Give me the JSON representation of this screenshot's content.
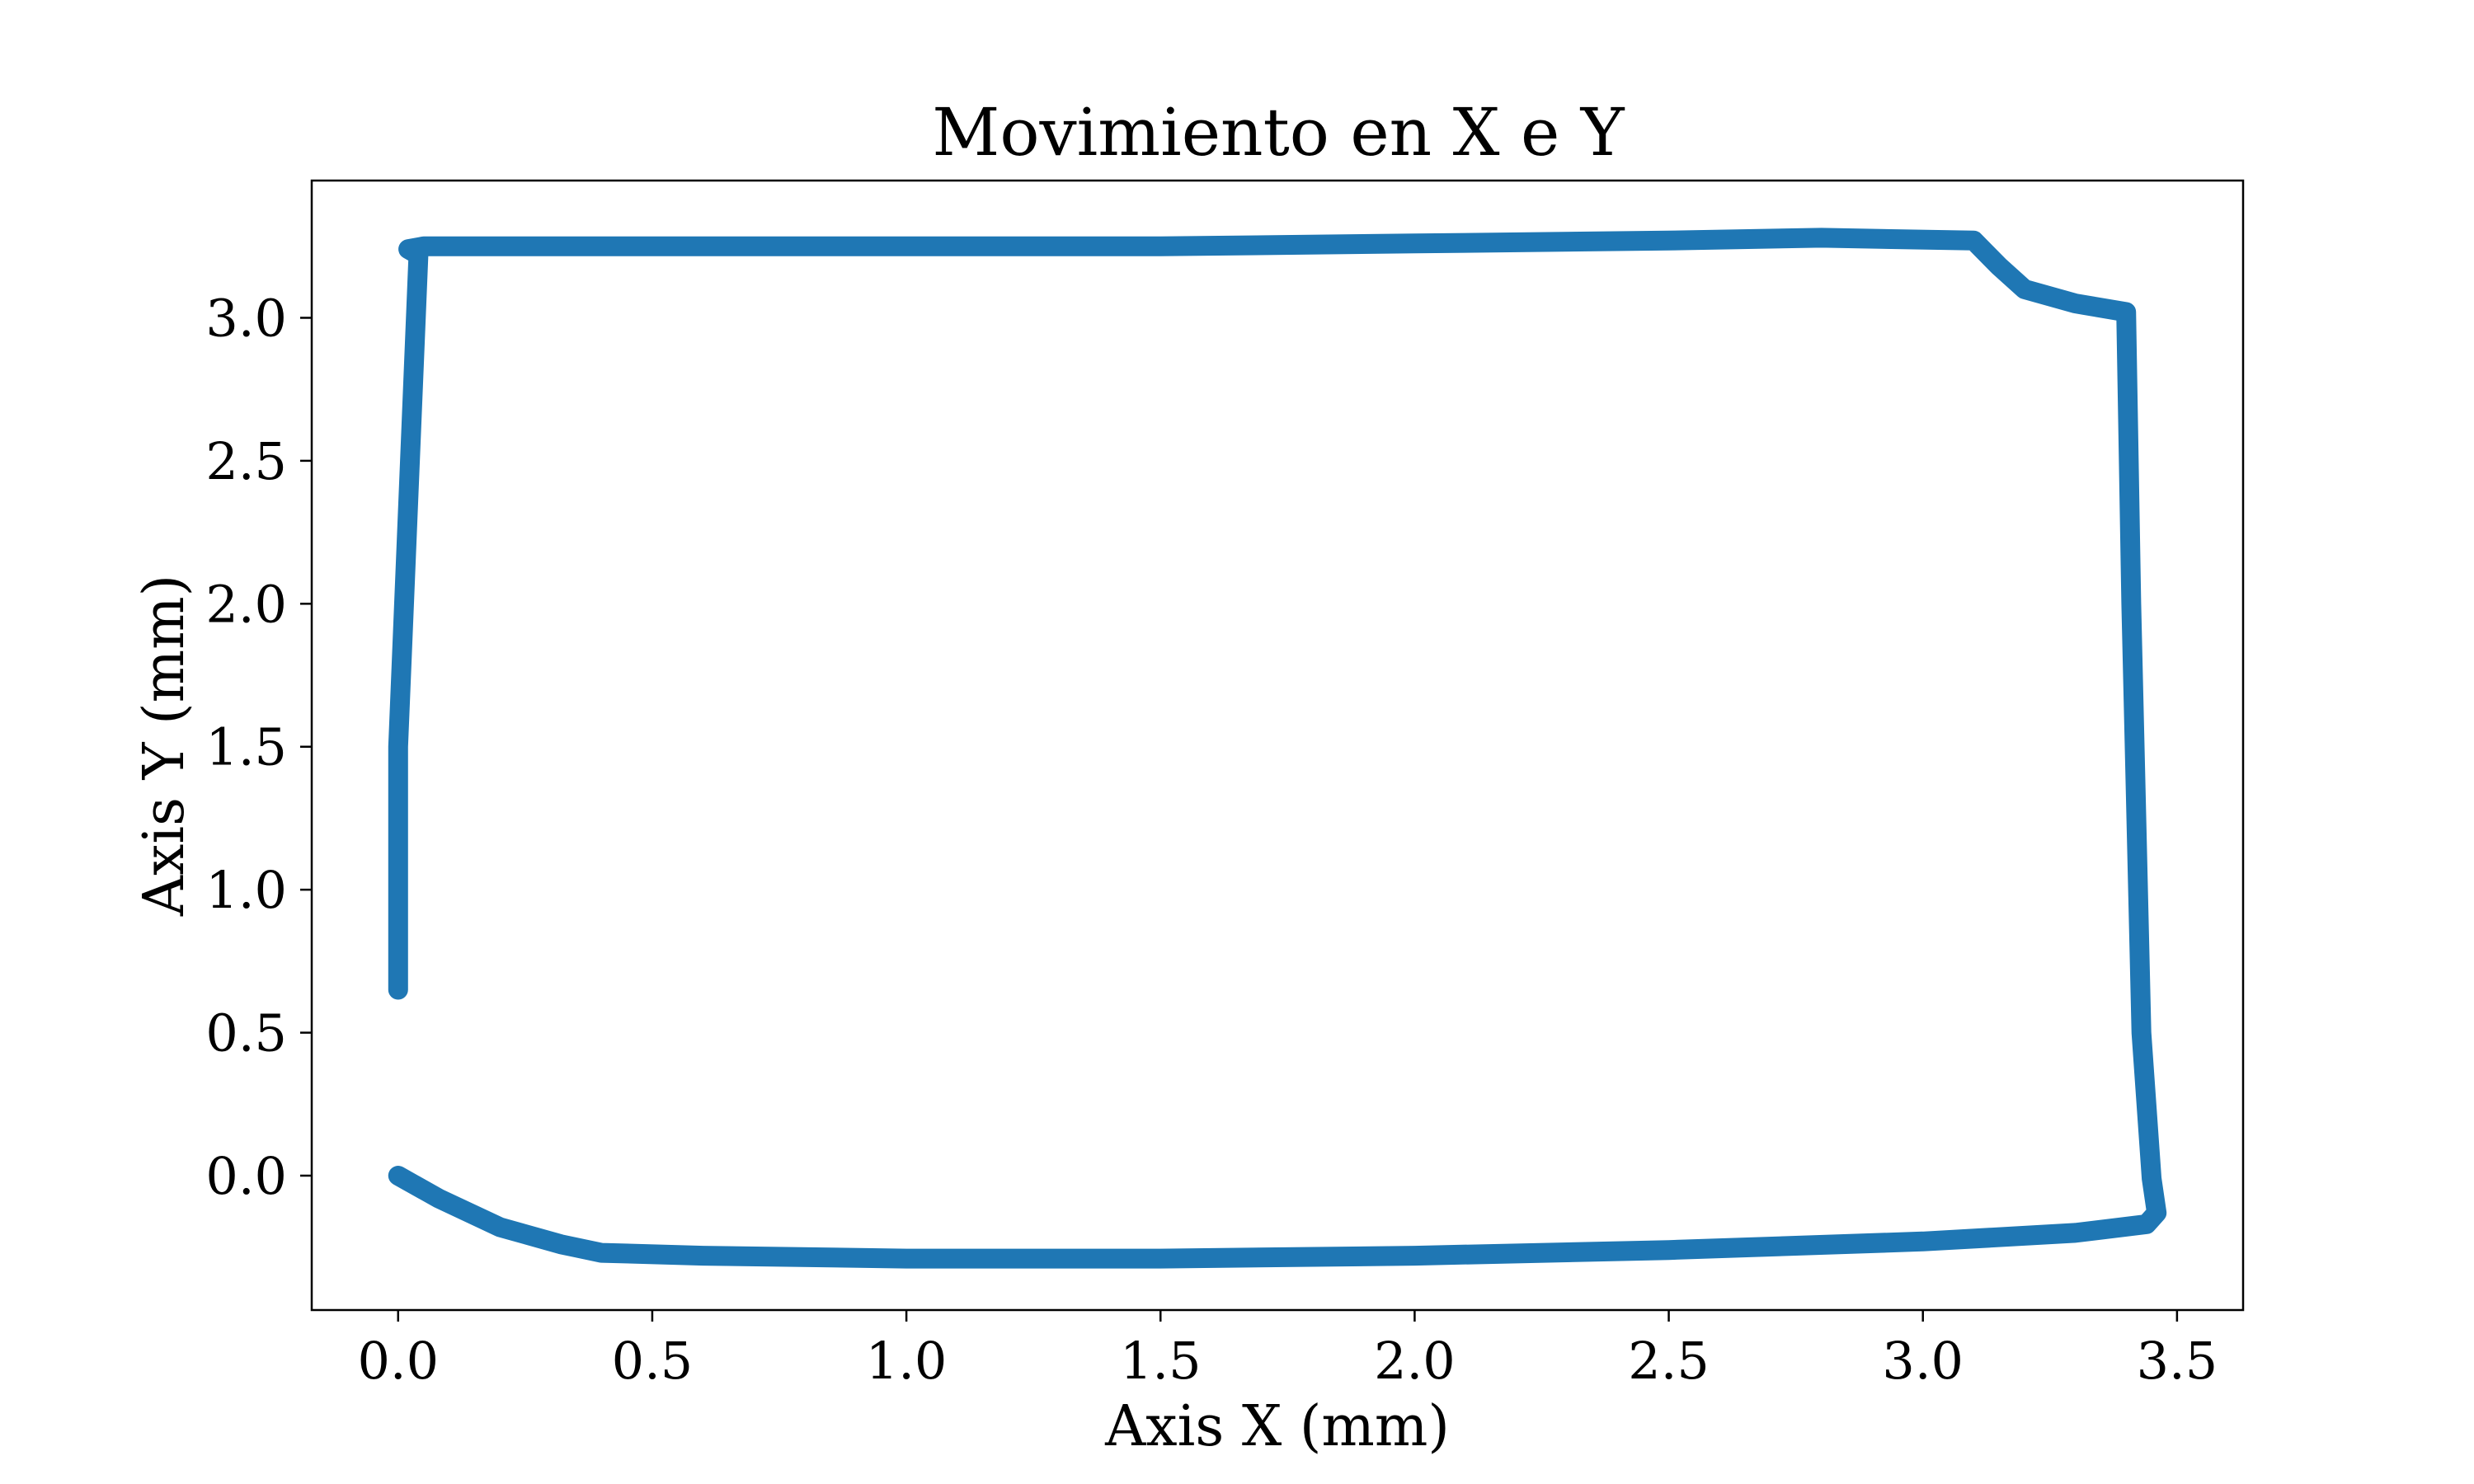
{
  "chart_data": {
    "type": "line",
    "title": "Movimiento en X e Y",
    "xlabel": "Axis X (mm)",
    "ylabel": "Axis Y (mm)",
    "xlim": [
      -0.17,
      3.63
    ],
    "ylim": [
      -0.47,
      3.48
    ],
    "xticks": [
      0.0,
      0.5,
      1.0,
      1.5,
      2.0,
      2.5,
      3.0,
      3.5
    ],
    "xtick_labels": [
      "0.0",
      "0.5",
      "1.0",
      "1.5",
      "2.0",
      "2.5",
      "3.0",
      "3.5"
    ],
    "yticks": [
      0.0,
      0.5,
      1.0,
      1.5,
      2.0,
      2.5,
      3.0
    ],
    "ytick_labels": [
      "0.0",
      "0.5",
      "1.0",
      "1.5",
      "2.0",
      "2.5",
      "3.0"
    ],
    "grid": false,
    "color": "#1f77b4",
    "series": [
      {
        "x": [
          0.0,
          0.08,
          0.2,
          0.32,
          0.4,
          0.6,
          1.0,
          1.5,
          2.0,
          2.5,
          3.0,
          3.3,
          3.44,
          3.46,
          3.45,
          3.43,
          3.41,
          3.4,
          3.3,
          3.2,
          3.15,
          3.1,
          2.8,
          2.5,
          2.0,
          1.5,
          1.0,
          0.5,
          0.05,
          0.02,
          0.04,
          0.0,
          0.0
        ],
        "y": [
          0.0,
          -0.08,
          -0.18,
          -0.24,
          -0.27,
          -0.28,
          -0.29,
          -0.29,
          -0.28,
          -0.26,
          -0.23,
          -0.2,
          -0.17,
          -0.13,
          -0.01,
          0.5,
          2.0,
          3.02,
          3.05,
          3.1,
          3.18,
          3.27,
          3.28,
          3.27,
          3.26,
          3.25,
          3.25,
          3.25,
          3.25,
          3.24,
          3.22,
          1.5,
          0.65
        ]
      }
    ]
  }
}
